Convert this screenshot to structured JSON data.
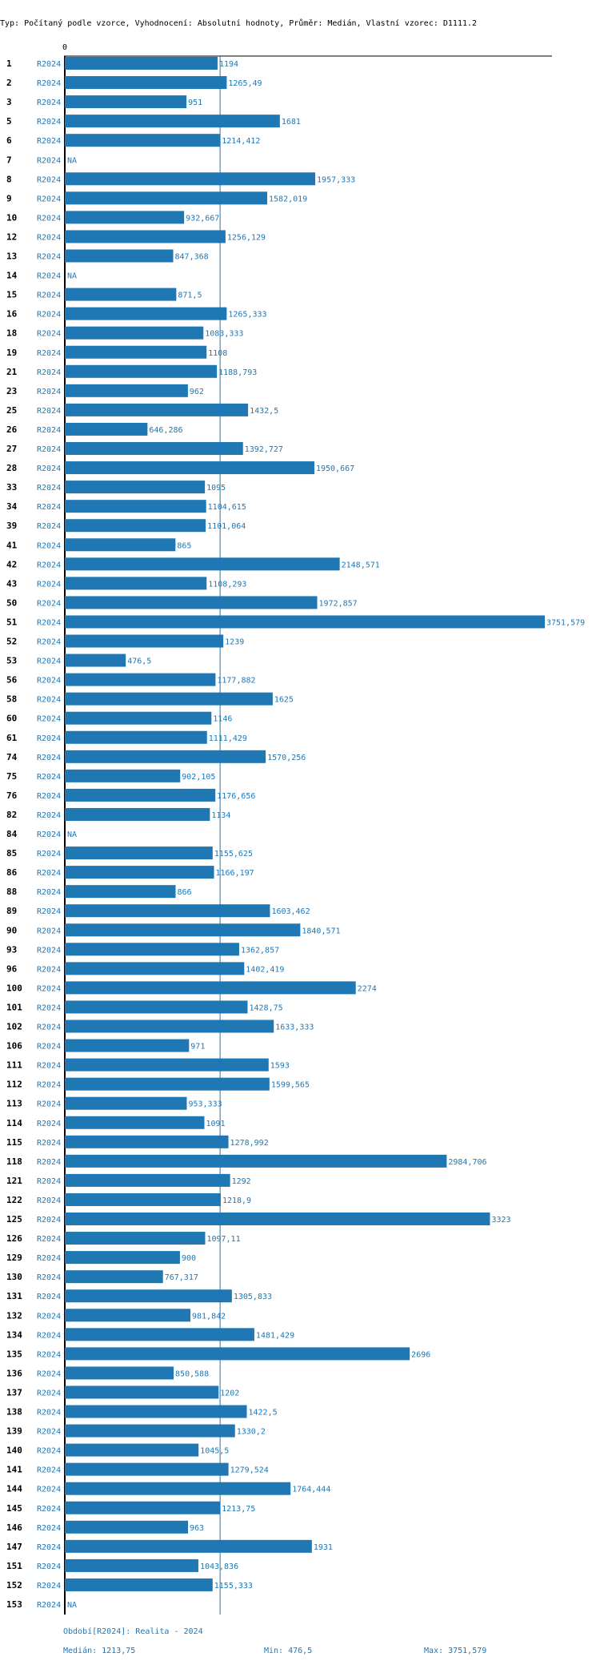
{
  "chart_data": {
    "type": "bar",
    "orientation": "horizontal",
    "title": "Typ: Počítaný podle vzorce, Vyhodnocení: Absolutní hodnoty, Průměr: Medián, Vlastní vzorec: D1111.2",
    "axis_zero_label": "0",
    "series_label": "R2024",
    "xlim": [
      0,
      3751.579
    ],
    "median": 1213.75,
    "rows": [
      {
        "id": "1",
        "value": 1194,
        "label": "1194"
      },
      {
        "id": "2",
        "value": 1265.49,
        "label": "1265,49"
      },
      {
        "id": "3",
        "value": 951,
        "label": "951"
      },
      {
        "id": "5",
        "value": 1681,
        "label": "1681"
      },
      {
        "id": "6",
        "value": 1214.412,
        "label": "1214,412"
      },
      {
        "id": "7",
        "value": null,
        "label": "NA"
      },
      {
        "id": "8",
        "value": 1957.333,
        "label": "1957,333"
      },
      {
        "id": "9",
        "value": 1582.019,
        "label": "1582,019"
      },
      {
        "id": "10",
        "value": 932.667,
        "label": "932,667"
      },
      {
        "id": "12",
        "value": 1256.129,
        "label": "1256,129"
      },
      {
        "id": "13",
        "value": 847.368,
        "label": "847,368"
      },
      {
        "id": "14",
        "value": null,
        "label": "NA"
      },
      {
        "id": "15",
        "value": 871.5,
        "label": "871,5"
      },
      {
        "id": "16",
        "value": 1265.333,
        "label": "1265,333"
      },
      {
        "id": "18",
        "value": 1083.333,
        "label": "1083,333"
      },
      {
        "id": "19",
        "value": 1108,
        "label": "1108"
      },
      {
        "id": "21",
        "value": 1188.793,
        "label": "1188,793"
      },
      {
        "id": "23",
        "value": 962,
        "label": "962"
      },
      {
        "id": "25",
        "value": 1432.5,
        "label": "1432,5"
      },
      {
        "id": "26",
        "value": 646.286,
        "label": "646,286"
      },
      {
        "id": "27",
        "value": 1392.727,
        "label": "1392,727"
      },
      {
        "id": "28",
        "value": 1950.667,
        "label": "1950,667"
      },
      {
        "id": "33",
        "value": 1095,
        "label": "1095"
      },
      {
        "id": "34",
        "value": 1104.615,
        "label": "1104,615"
      },
      {
        "id": "39",
        "value": 1101.064,
        "label": "1101,064"
      },
      {
        "id": "41",
        "value": 865,
        "label": "865"
      },
      {
        "id": "42",
        "value": 2148.571,
        "label": "2148,571"
      },
      {
        "id": "43",
        "value": 1108.293,
        "label": "1108,293"
      },
      {
        "id": "50",
        "value": 1972.857,
        "label": "1972,857"
      },
      {
        "id": "51",
        "value": 3751.579,
        "label": "3751,579"
      },
      {
        "id": "52",
        "value": 1239,
        "label": "1239"
      },
      {
        "id": "53",
        "value": 476.5,
        "label": "476,5"
      },
      {
        "id": "56",
        "value": 1177.882,
        "label": "1177,882"
      },
      {
        "id": "58",
        "value": 1625,
        "label": "1625"
      },
      {
        "id": "60",
        "value": 1146,
        "label": "1146"
      },
      {
        "id": "61",
        "value": 1111.429,
        "label": "1111,429"
      },
      {
        "id": "74",
        "value": 1570.256,
        "label": "1570,256"
      },
      {
        "id": "75",
        "value": 902.105,
        "label": "902,105"
      },
      {
        "id": "76",
        "value": 1176.656,
        "label": "1176,656"
      },
      {
        "id": "82",
        "value": 1134,
        "label": "1134"
      },
      {
        "id": "84",
        "value": null,
        "label": "NA"
      },
      {
        "id": "85",
        "value": 1155.625,
        "label": "1155,625"
      },
      {
        "id": "86",
        "value": 1166.197,
        "label": "1166,197"
      },
      {
        "id": "88",
        "value": 866,
        "label": "866"
      },
      {
        "id": "89",
        "value": 1603.462,
        "label": "1603,462"
      },
      {
        "id": "90",
        "value": 1840.571,
        "label": "1840,571"
      },
      {
        "id": "93",
        "value": 1362.857,
        "label": "1362,857"
      },
      {
        "id": "96",
        "value": 1402.419,
        "label": "1402,419"
      },
      {
        "id": "100",
        "value": 2274,
        "label": "2274"
      },
      {
        "id": "101",
        "value": 1428.75,
        "label": "1428,75"
      },
      {
        "id": "102",
        "value": 1633.333,
        "label": "1633,333"
      },
      {
        "id": "106",
        "value": 971,
        "label": "971"
      },
      {
        "id": "111",
        "value": 1593,
        "label": "1593"
      },
      {
        "id": "112",
        "value": 1599.565,
        "label": "1599,565"
      },
      {
        "id": "113",
        "value": 953.333,
        "label": "953,333"
      },
      {
        "id": "114",
        "value": 1091,
        "label": "1091"
      },
      {
        "id": "115",
        "value": 1278.992,
        "label": "1278,992"
      },
      {
        "id": "118",
        "value": 2984.706,
        "label": "2984,706"
      },
      {
        "id": "121",
        "value": 1292,
        "label": "1292"
      },
      {
        "id": "122",
        "value": 1218.9,
        "label": "1218,9"
      },
      {
        "id": "125",
        "value": 3323,
        "label": "3323"
      },
      {
        "id": "126",
        "value": 1097.11,
        "label": "1097,11"
      },
      {
        "id": "129",
        "value": 900,
        "label": "900"
      },
      {
        "id": "130",
        "value": 767.317,
        "label": "767,317"
      },
      {
        "id": "131",
        "value": 1305.833,
        "label": "1305,833"
      },
      {
        "id": "132",
        "value": 981.842,
        "label": "981,842"
      },
      {
        "id": "134",
        "value": 1481.429,
        "label": "1481,429"
      },
      {
        "id": "135",
        "value": 2696,
        "label": "2696"
      },
      {
        "id": "136",
        "value": 850.588,
        "label": "850,588"
      },
      {
        "id": "137",
        "value": 1202,
        "label": "1202"
      },
      {
        "id": "138",
        "value": 1422.5,
        "label": "1422,5"
      },
      {
        "id": "139",
        "value": 1330.2,
        "label": "1330,2"
      },
      {
        "id": "140",
        "value": 1045.5,
        "label": "1045,5"
      },
      {
        "id": "141",
        "value": 1279.524,
        "label": "1279,524"
      },
      {
        "id": "144",
        "value": 1764.444,
        "label": "1764,444"
      },
      {
        "id": "145",
        "value": 1213.75,
        "label": "1213,75"
      },
      {
        "id": "146",
        "value": 963,
        "label": "963"
      },
      {
        "id": "147",
        "value": 1931,
        "label": "1931"
      },
      {
        "id": "151",
        "value": 1043.836,
        "label": "1043,836"
      },
      {
        "id": "152",
        "value": 1155.333,
        "label": "1155,333"
      },
      {
        "id": "153",
        "value": null,
        "label": "NA"
      }
    ],
    "footer": {
      "period": "Období[R2024]: Realita - 2024",
      "median": "Medián: 1213,75",
      "min": "Min: 476,5",
      "max": "Max: 3751,579"
    },
    "colors": {
      "bar": "#1f77b4",
      "text_blue": "#1f77b4",
      "id_text": "#000000",
      "axis": "#000000"
    }
  }
}
